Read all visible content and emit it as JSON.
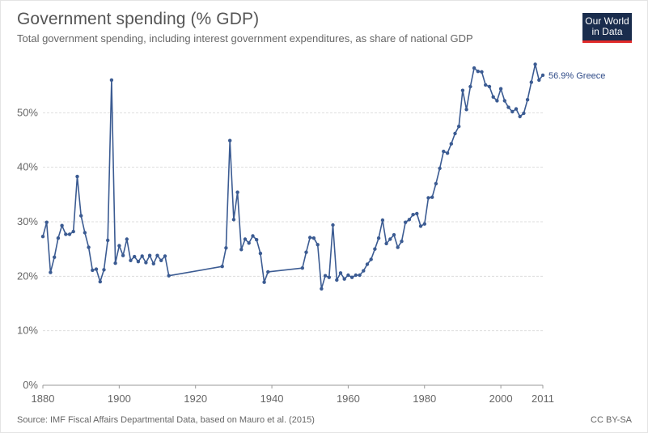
{
  "header": {
    "title": "Government spending (% GDP)",
    "subtitle": "Total government spending, including interest government expenditures, as share of national GDP"
  },
  "logo": {
    "line1": "Our World",
    "line2": "in Data"
  },
  "footer": {
    "source": "Source: IMF Fiscal Affairs Departmental Data, based on Mauro et al. (2015)",
    "license": "CC BY-SA"
  },
  "colors": {
    "line": "#3b5b92",
    "grid": "#dddddd",
    "logo_bg": "#1a2d4d",
    "logo_accent": "#e12a2a"
  },
  "chart_data": {
    "type": "line",
    "title": "Government spending (% GDP)",
    "subtitle": "Total government spending, including interest government expenditures, as share of national GDP",
    "xlabel": "",
    "ylabel": "",
    "xlim": [
      1880,
      2011
    ],
    "ylim": [
      0,
      60
    ],
    "x_ticks": [
      "1880",
      "1900",
      "1920",
      "1940",
      "1960",
      "1980",
      "2000",
      "2011"
    ],
    "y_ticks": [
      {
        "value": 0,
        "label": "0%"
      },
      {
        "value": 10,
        "label": "10%"
      },
      {
        "value": 20,
        "label": "20%"
      },
      {
        "value": 30,
        "label": "30%"
      },
      {
        "value": 40,
        "label": "40%"
      },
      {
        "value": 50,
        "label": "50%"
      }
    ],
    "grid": true,
    "series": [
      {
        "name": "Greece",
        "end_label": "56.9% Greece",
        "x": [
          1880,
          1881,
          1882,
          1883,
          1884,
          1885,
          1886,
          1887,
          1888,
          1889,
          1890,
          1891,
          1892,
          1893,
          1894,
          1895,
          1896,
          1897,
          1898,
          1899,
          1900,
          1901,
          1902,
          1903,
          1904,
          1905,
          1906,
          1907,
          1908,
          1909,
          1910,
          1911,
          1912,
          1913,
          1927,
          1928,
          1929,
          1930,
          1931,
          1932,
          1933,
          1934,
          1935,
          1936,
          1937,
          1938,
          1939,
          1948,
          1949,
          1950,
          1951,
          1952,
          1953,
          1954,
          1955,
          1956,
          1957,
          1958,
          1959,
          1960,
          1961,
          1962,
          1963,
          1964,
          1965,
          1966,
          1967,
          1968,
          1969,
          1970,
          1971,
          1972,
          1973,
          1974,
          1975,
          1976,
          1977,
          1978,
          1979,
          1980,
          1981,
          1982,
          1983,
          1984,
          1985,
          1986,
          1987,
          1988,
          1989,
          1990,
          1991,
          1992,
          1993,
          1994,
          1995,
          1996,
          1997,
          1998,
          1999,
          2000,
          2001,
          2002,
          2003,
          2004,
          2005,
          2006,
          2007,
          2008,
          2009,
          2010,
          2011
        ],
        "values": [
          27.3,
          29.9,
          20.7,
          23.5,
          27.0,
          29.3,
          27.7,
          27.7,
          28.2,
          38.3,
          31.1,
          28.0,
          25.3,
          21.1,
          21.3,
          19.0,
          21.2,
          26.6,
          56.0,
          22.4,
          25.6,
          23.8,
          26.8,
          22.9,
          23.6,
          22.7,
          23.7,
          22.5,
          23.8,
          22.3,
          23.8,
          22.9,
          23.7,
          20.1,
          21.8,
          25.2,
          44.9,
          30.4,
          35.4,
          24.9,
          26.8,
          26.1,
          27.4,
          26.7,
          24.2,
          18.9,
          20.8,
          21.5,
          24.4,
          27.1,
          27.0,
          25.8,
          17.7,
          20.1,
          19.8,
          29.4,
          19.3,
          20.6,
          19.5,
          20.2,
          19.8,
          20.2,
          20.2,
          21.0,
          22.2,
          23.1,
          25.0,
          27.0,
          30.3,
          26.0,
          26.8,
          27.6,
          25.3,
          26.4,
          29.9,
          30.4,
          31.3,
          31.5,
          29.2,
          29.6,
          34.4,
          34.5,
          37.0,
          39.8,
          42.9,
          42.6,
          44.3,
          46.2,
          47.5,
          54.1,
          50.6,
          54.8,
          58.2,
          57.6,
          57.5,
          55.1,
          54.8,
          52.9,
          52.2,
          54.4,
          52.2,
          51.0,
          50.2,
          50.7,
          49.3,
          49.9,
          52.4,
          55.6,
          58.9,
          56.0,
          56.9
        ]
      }
    ]
  }
}
